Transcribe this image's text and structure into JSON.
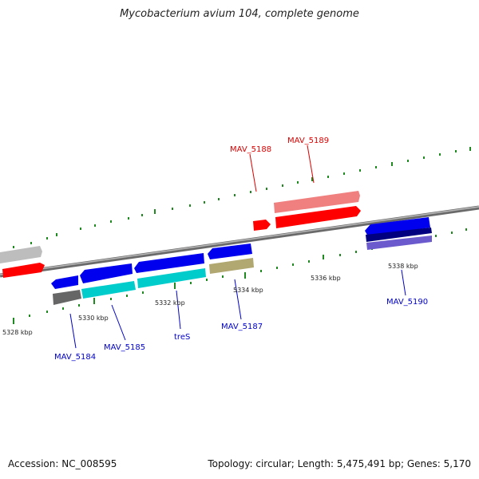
{
  "header": {
    "title": "Mycobacterium avium 104, complete genome"
  },
  "footer": {
    "accession": "Accession: NC_008595",
    "topology": "Topology: circular; Length: 5,475,491 bp; Genes: 5,170"
  },
  "scale_labels": [
    "5328 kbp",
    "5330 kbp",
    "5332 kbp",
    "5334 kbp",
    "5336 kbp",
    "5338 kbp"
  ],
  "gene_labels": [
    {
      "text": "MAV_5184",
      "strand": "minus",
      "color": "#0000cc"
    },
    {
      "text": "MAV_5185",
      "strand": "minus",
      "color": "#0000cc"
    },
    {
      "text": "treS",
      "strand": "minus",
      "color": "#0000cc"
    },
    {
      "text": "MAV_5187",
      "strand": "minus",
      "color": "#0000cc"
    },
    {
      "text": "MAV_5188",
      "strand": "plus",
      "color": "#dd0000"
    },
    {
      "text": "MAV_5189",
      "strand": "plus",
      "color": "#dd0000"
    },
    {
      "text": "MAV_5190",
      "strand": "minus",
      "color": "#0000cc"
    }
  ],
  "colors": {
    "backbone": "#8a8a8a",
    "tick": "#1f8a1f",
    "plus_gene": "#ff0000",
    "minus_gene": "#0000ee",
    "rna": "#00cccc",
    "pseudo": "#b0a870",
    "gray": "#666666",
    "light_gray": "#bdbdbd",
    "pink": "#f08080",
    "navy": "#000080",
    "lavender": "#6a5acd"
  }
}
